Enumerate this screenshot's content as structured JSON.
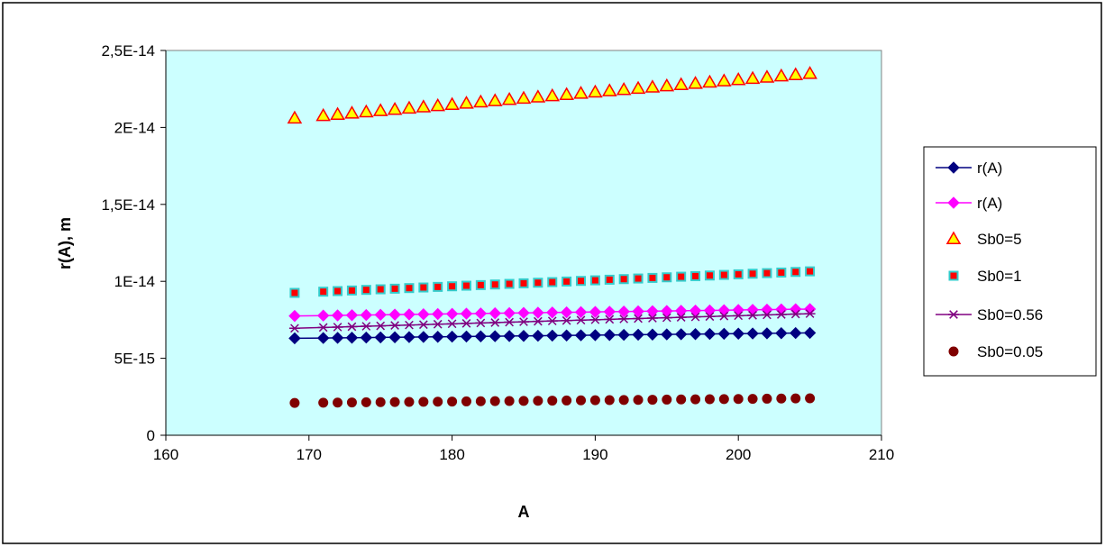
{
  "chart_data": {
    "type": "scatter",
    "xlabel": "A",
    "ylabel": "r(A), m",
    "xlim": [
      160,
      210
    ],
    "ylim": [
      0,
      2.5e-14
    ],
    "x_ticks": [
      {
        "value": 160,
        "label": "160"
      },
      {
        "value": 170,
        "label": "170"
      },
      {
        "value": 180,
        "label": "180"
      },
      {
        "value": 190,
        "label": "190"
      },
      {
        "value": 200,
        "label": "200"
      },
      {
        "value": 210,
        "label": "210"
      }
    ],
    "y_ticks": [
      {
        "value": 0,
        "label": "0"
      },
      {
        "value": 5e-15,
        "label": "5E-15"
      },
      {
        "value": 1e-14,
        "label": "1E-14"
      },
      {
        "value": 1.5e-14,
        "label": "1,5E-14"
      },
      {
        "value": 2e-14,
        "label": "2E-14"
      },
      {
        "value": 2.5e-14,
        "label": "2,5E-14"
      }
    ],
    "grid": false,
    "legend_position": "right",
    "plot_background": "#ccffff",
    "x": [
      169,
      171,
      172,
      173,
      174,
      175,
      176,
      177,
      178,
      179,
      180,
      181,
      182,
      183,
      184,
      185,
      186,
      187,
      188,
      189,
      190,
      191,
      192,
      193,
      194,
      195,
      196,
      197,
      198,
      199,
      200,
      201,
      202,
      203,
      204,
      205
    ],
    "series": [
      {
        "name": "r(A)",
        "marker": "diamond",
        "line": true,
        "color": "#000080",
        "y_start": 6.3e-15,
        "y_end": 6.65e-15
      },
      {
        "name": "r(A)",
        "marker": "diamond",
        "line": true,
        "color": "#ff00ff",
        "y_start": 7.75e-15,
        "y_end": 8.2e-15
      },
      {
        "name": "Sb0=5",
        "marker": "triangle",
        "line": false,
        "color": "#ffff00",
        "edge": "#ff0000",
        "y_start": 2.06e-14,
        "y_end": 2.35e-14
      },
      {
        "name": "Sb0=1",
        "marker": "square",
        "line": false,
        "color": "#ff0000",
        "edge": "#33cccc",
        "y_start": 9.25e-15,
        "y_end": 1.065e-14
      },
      {
        "name": "Sb0=0.56",
        "marker": "star",
        "line": true,
        "color": "#800080",
        "y_start": 6.95e-15,
        "y_end": 7.9e-15
      },
      {
        "name": "Sb0=0.05",
        "marker": "circle",
        "line": false,
        "color": "#800000",
        "y_start": 2.1e-15,
        "y_end": 2.4e-15
      }
    ]
  }
}
